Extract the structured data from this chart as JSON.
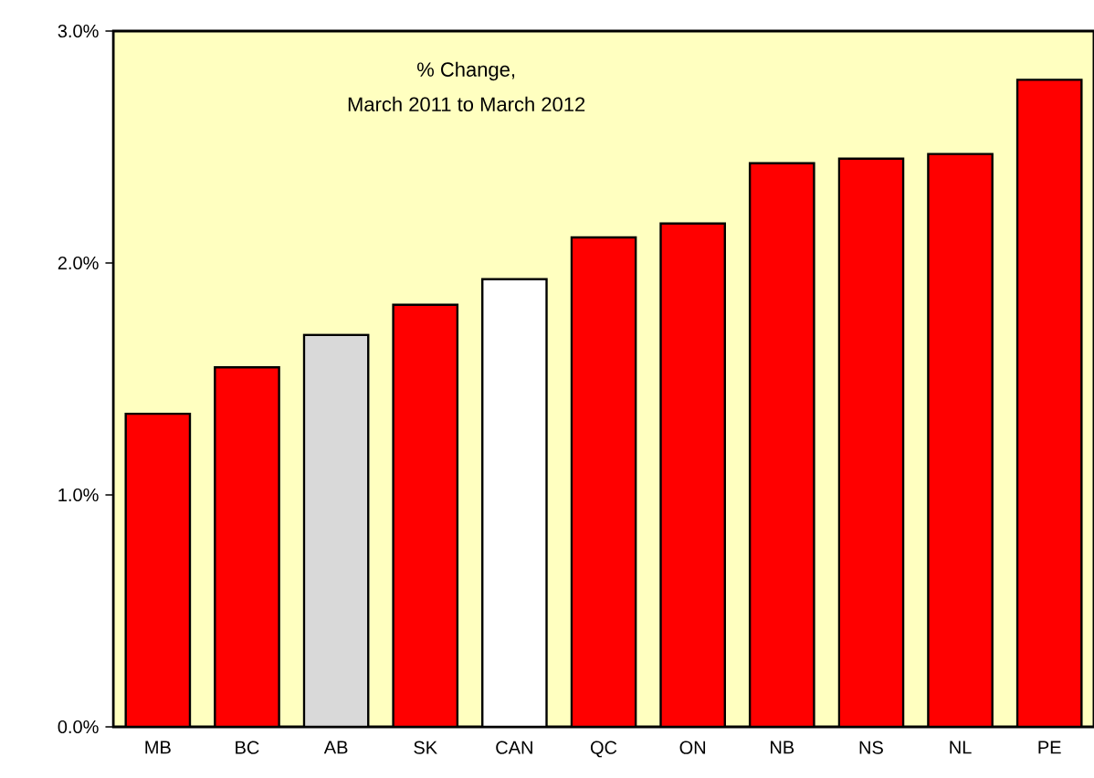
{
  "chart_data": {
    "type": "bar",
    "annotations": [
      "% Change,",
      "March 2011  to  March 2012"
    ],
    "categories": [
      "MB",
      "BC",
      "AB",
      "SK",
      "CAN",
      "QC",
      "ON",
      "NB",
      "NS",
      "NL",
      "PE"
    ],
    "values": [
      1.35,
      1.55,
      1.69,
      1.82,
      1.93,
      2.11,
      2.17,
      2.43,
      2.45,
      2.47,
      2.79
    ],
    "colors": [
      "#ff0000",
      "#ff0000",
      "#d9d9d9",
      "#ff0000",
      "#ffffff",
      "#ff0000",
      "#ff0000",
      "#ff0000",
      "#ff0000",
      "#ff0000",
      "#ff0000"
    ],
    "ylim": [
      0,
      3
    ],
    "yticks": [
      {
        "value": 0,
        "label": "0.0%"
      },
      {
        "value": 1,
        "label": "1.0%"
      },
      {
        "value": 2,
        "label": "2.0%"
      },
      {
        "value": 3,
        "label": "3.0%"
      }
    ]
  }
}
